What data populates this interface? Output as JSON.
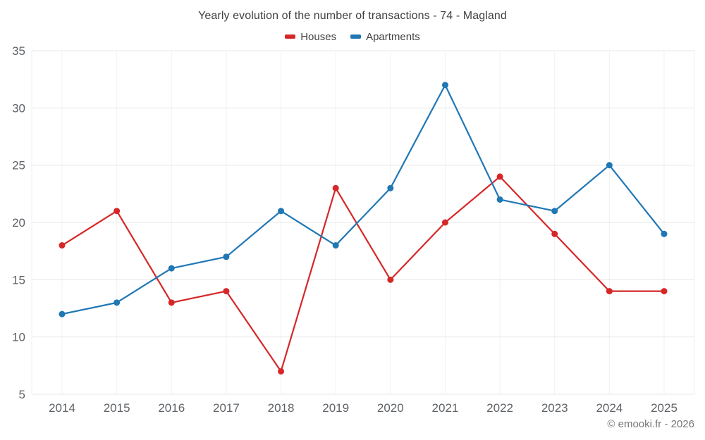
{
  "header": {
    "title": "Yearly evolution of the number of transactions - 74 - Magland"
  },
  "legend": {
    "items": [
      {
        "label": "Houses",
        "color": "#d62728"
      },
      {
        "label": "Apartments",
        "color": "#1f77b4"
      }
    ]
  },
  "footer": {
    "attribution": "© emooki.fr - 2026"
  },
  "chart_data": {
    "type": "line",
    "title": "Yearly evolution of the number of transactions - 74 - Magland",
    "categories": [
      "2014",
      "2015",
      "2016",
      "2017",
      "2018",
      "2019",
      "2020",
      "2021",
      "2022",
      "2023",
      "2024",
      "2025"
    ],
    "series": [
      {
        "name": "Houses",
        "color": "#d62728",
        "values": [
          18,
          21,
          13,
          14,
          7,
          23,
          15,
          20,
          24,
          19,
          14,
          14
        ]
      },
      {
        "name": "Apartments",
        "color": "#1f77b4",
        "values": [
          12,
          13,
          16,
          17,
          21,
          18,
          23,
          32,
          22,
          21,
          25,
          19
        ]
      }
    ],
    "xlabel": "",
    "ylabel": "",
    "ylim": [
      5,
      35
    ],
    "yticks": [
      5,
      10,
      15,
      20,
      25,
      30,
      35
    ],
    "grid": true,
    "legend_position": "top",
    "tick_color": "#5f6368",
    "grid_color": "#e7e7e7",
    "minor_grid_color": "#f1f1f1"
  }
}
